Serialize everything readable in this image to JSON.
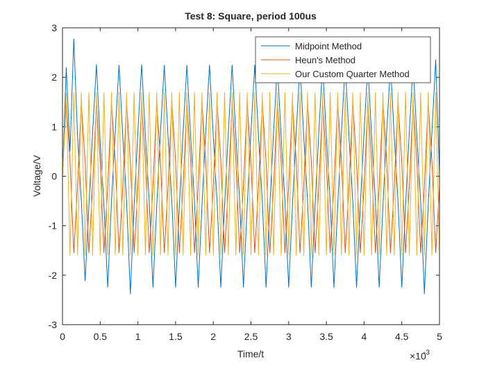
{
  "chart_data": {
    "type": "line",
    "title": "Test 8: Square, period 100us",
    "x_label": "Time/t",
    "y_label": "Voltage/V",
    "x_exponent": {
      "base": "×10",
      "power": "-3"
    },
    "x": [
      0,
      5e-05,
      0.0001,
      0.00015,
      0.0002,
      0.00025,
      0.0003,
      0.00035,
      0.0004,
      0.00045,
      0.0005,
      0.00055,
      0.0006,
      0.00065,
      0.0007,
      0.00075,
      0.0008,
      0.00085,
      0.0009,
      0.00095,
      0.001,
      0.00105,
      0.0011,
      0.00115,
      0.0012,
      0.00125,
      0.0013,
      0.00135,
      0.0014,
      0.00145,
      0.0015,
      0.00155,
      0.0016,
      0.00165,
      0.0017,
      0.00175,
      0.0018,
      0.00185,
      0.0019,
      0.00195,
      0.002,
      0.00205,
      0.0021,
      0.00215,
      0.0022,
      0.00225,
      0.0023,
      0.00235,
      0.0024,
      0.00245,
      0.0025,
      0.00255,
      0.0026,
      0.00265,
      0.0027,
      0.00275,
      0.0028,
      0.00285,
      0.0029,
      0.00295,
      0.003,
      0.00305,
      0.0031,
      0.00315,
      0.0032,
      0.00325,
      0.0033,
      0.00335,
      0.0034,
      0.00345,
      0.0035,
      0.00355,
      0.0036,
      0.00365,
      0.0037,
      0.00375,
      0.0038,
      0.00385,
      0.0039,
      0.00395,
      0.004,
      0.00405,
      0.0041,
      0.00415,
      0.0042,
      0.00425,
      0.0043,
      0.00435,
      0.0044,
      0.00445,
      0.0045,
      0.00455,
      0.0046,
      0.00465,
      0.0047,
      0.00475,
      0.0048,
      0.00485,
      0.0049,
      0.00495,
      0.005
    ],
    "series": [
      {
        "name": "Midpoint Method",
        "color": "#0072BD",
        "values": [
          0,
          2.2,
          0.5,
          2.78,
          0.8,
          -0.5,
          -2.12,
          -0.6,
          0.9,
          2.26,
          0.7,
          -0.6,
          -2.25,
          -0.5,
          0.9,
          2.25,
          0.8,
          -0.5,
          -2.38,
          -0.6,
          0.9,
          2.26,
          0.8,
          -0.5,
          -2.25,
          -0.6,
          0.9,
          2.25,
          0.8,
          -0.5,
          -2.25,
          -0.6,
          0.9,
          2.25,
          0.8,
          -0.5,
          -2.25,
          -0.6,
          0.9,
          2.25,
          0.8,
          -0.5,
          -2.25,
          -0.6,
          0.9,
          2.25,
          0.8,
          -0.5,
          -2.25,
          -0.6,
          0.9,
          2.25,
          0.8,
          -0.5,
          -2.25,
          -0.6,
          0.9,
          2.25,
          0.8,
          -0.5,
          -2.25,
          -0.6,
          0.9,
          2.25,
          0.8,
          -0.5,
          -2.25,
          -0.6,
          0.9,
          2.25,
          0.8,
          -0.5,
          -2.25,
          -0.6,
          0.9,
          2.25,
          0.8,
          -0.5,
          -2.25,
          -0.6,
          0.9,
          2.25,
          0.8,
          -0.5,
          -2.25,
          -0.6,
          0.9,
          2.25,
          0.8,
          -0.5,
          -2.25,
          -0.6,
          0.9,
          2.25,
          0.8,
          -0.5,
          -2.38,
          -0.6,
          0.9,
          2.36,
          0.05
        ]
      },
      {
        "name": "Heun's Method",
        "color": "#D95319",
        "values": [
          0,
          1.5,
          0.3,
          -1.55,
          -0.2,
          1.5,
          0.3,
          -1.55,
          -0.2,
          1.5,
          0.3,
          -1.55,
          -0.2,
          1.5,
          0.3,
          -1.55,
          -0.2,
          1.5,
          0.3,
          -1.55,
          -0.2,
          1.5,
          0.3,
          -1.55,
          -0.2,
          1.5,
          0.3,
          -1.55,
          -0.2,
          1.5,
          0.3,
          -1.55,
          -0.2,
          1.5,
          0.3,
          -1.55,
          -0.2,
          1.5,
          0.3,
          -1.55,
          -0.2,
          1.5,
          0.3,
          -1.55,
          -0.2,
          1.5,
          0.3,
          -1.55,
          -0.2,
          1.5,
          0.3,
          -1.55,
          -0.2,
          1.5,
          0.3,
          -1.55,
          -0.2,
          1.5,
          0.3,
          -1.55,
          -0.2,
          1.5,
          0.3,
          -1.55,
          -0.2,
          1.5,
          0.3,
          -1.55,
          -0.2,
          1.5,
          0.3,
          -1.55,
          -0.2,
          1.5,
          0.3,
          -1.55,
          -0.2,
          1.5,
          0.3,
          -1.55,
          -0.2,
          1.5,
          0.3,
          -1.55,
          -0.2,
          1.5,
          0.3,
          -1.55,
          -0.2,
          1.5,
          0.3,
          -1.55,
          -0.2,
          1.5,
          0.3,
          -1.55,
          -0.2,
          1.5,
          0.3,
          -1.55,
          -0.2
        ]
      },
      {
        "name": "Our Custom Quarter Method",
        "color": "#EDB120",
        "values": [
          0,
          1.7,
          -1.6,
          1.7,
          -1.6,
          1.7,
          -1.6,
          1.7,
          -1.6,
          1.7,
          -1.6,
          1.7,
          -1.6,
          1.7,
          -1.6,
          1.7,
          -1.6,
          1.7,
          -1.6,
          1.7,
          -1.6,
          1.7,
          -1.6,
          1.7,
          -1.6,
          1.7,
          -1.6,
          1.7,
          -1.6,
          1.7,
          -1.6,
          1.7,
          -1.6,
          1.7,
          -1.6,
          1.7,
          -1.6,
          1.7,
          -1.6,
          1.7,
          -1.6,
          1.7,
          -1.6,
          1.7,
          -1.6,
          1.7,
          -1.6,
          1.7,
          -1.6,
          1.7,
          -1.6,
          1.7,
          -1.6,
          1.7,
          -1.6,
          1.7,
          -1.6,
          1.7,
          -1.6,
          1.7,
          -1.6,
          1.7,
          -1.6,
          1.7,
          -1.6,
          1.7,
          -1.6,
          1.7,
          -1.6,
          1.7,
          -1.6,
          1.7,
          -1.6,
          1.7,
          -1.6,
          1.7,
          -1.6,
          1.7,
          -1.6,
          1.7,
          -1.6,
          1.7,
          -1.6,
          1.7,
          -1.6,
          1.7,
          -1.6,
          1.7,
          -1.6,
          1.7,
          -1.6,
          1.7,
          -1.6,
          1.7,
          -1.6,
          1.7,
          -1.6,
          1.7,
          -1.6,
          1.7,
          -1.6
        ]
      }
    ],
    "xlim": [
      0,
      0.005
    ],
    "xticks": [
      0,
      {
        "value": 0.0005,
        "label": "0.5"
      },
      {
        "value": 0.001,
        "label": "1"
      },
      {
        "value": 0.0015,
        "label": "1.5"
      },
      {
        "value": 0.002,
        "label": "2"
      },
      {
        "value": 0.0025,
        "label": "2.5"
      },
      {
        "value": 0.003,
        "label": "3"
      },
      {
        "value": 0.0035,
        "label": "3.5"
      },
      {
        "value": 0.004,
        "label": "4"
      },
      {
        "value": 0.0045,
        "label": "4.5"
      },
      {
        "value": 0.005,
        "label": "5"
      }
    ],
    "ylim": [
      -3,
      3
    ],
    "yticks": [
      -3,
      -2,
      -1,
      0,
      1,
      2,
      3
    ],
    "grid": false,
    "legend": "upper right"
  }
}
